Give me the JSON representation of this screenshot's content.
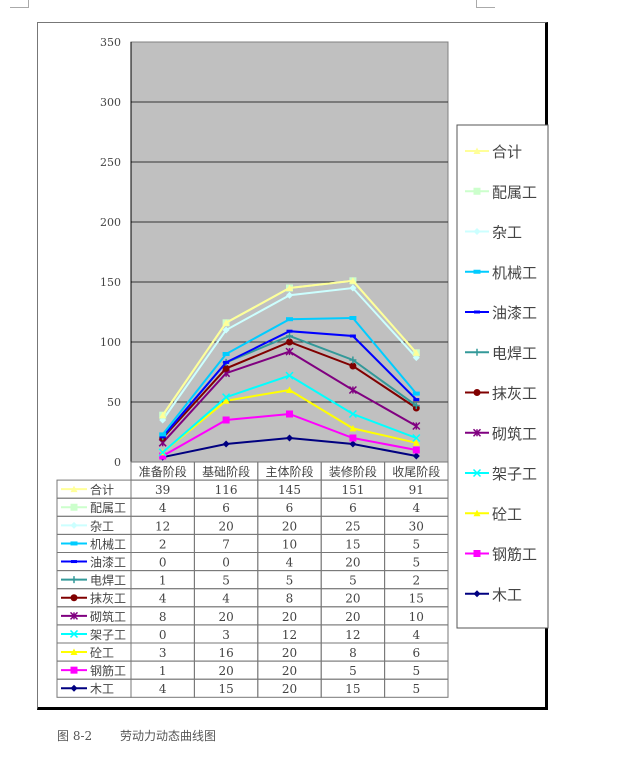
{
  "caption": {
    "figure_no": "图 8-2",
    "title": "劳动力动态曲线图"
  },
  "chart_data": {
    "type": "line",
    "stacked": true,
    "title": "劳动力动态曲线图",
    "xlabel": "",
    "ylabel": "",
    "ylim": [
      0,
      350
    ],
    "yticks": [
      0,
      50,
      100,
      150,
      200,
      250,
      300,
      350
    ],
    "grid": true,
    "legend_position": "right",
    "categories": [
      "准备阶段",
      "基础阶段",
      "主体阶段",
      "装修阶段",
      "收尾阶段"
    ],
    "series": [
      {
        "name": "合计",
        "color": "#FFFF99",
        "marker": "triangle",
        "values": [
          39,
          116,
          145,
          151,
          91
        ]
      },
      {
        "name": "配属工",
        "color": "#CCFFCC",
        "marker": "square",
        "values": [
          4,
          6,
          6,
          6,
          4
        ]
      },
      {
        "name": "杂工",
        "color": "#CCFFFF",
        "marker": "diamond",
        "values": [
          12,
          20,
          20,
          25,
          30
        ]
      },
      {
        "name": "机械工",
        "color": "#00CCFF",
        "marker": "rect",
        "values": [
          2,
          7,
          10,
          15,
          5
        ]
      },
      {
        "name": "油漆工",
        "color": "#0000FF",
        "marker": "dash",
        "values": [
          0,
          0,
          4,
          20,
          5
        ]
      },
      {
        "name": "电焊工",
        "color": "#339999",
        "marker": "plus",
        "values": [
          1,
          5,
          5,
          5,
          2
        ]
      },
      {
        "name": "抹灰工",
        "color": "#800000",
        "marker": "circle",
        "values": [
          4,
          4,
          8,
          20,
          15
        ]
      },
      {
        "name": "砌筑工",
        "color": "#800080",
        "marker": "star",
        "values": [
          8,
          20,
          20,
          20,
          10
        ]
      },
      {
        "name": "架子工",
        "color": "#00FFFF",
        "marker": "x",
        "values": [
          0,
          3,
          12,
          12,
          4
        ]
      },
      {
        "name": "砼工",
        "color": "#FFFF00",
        "marker": "triangle",
        "values": [
          3,
          16,
          20,
          8,
          6
        ]
      },
      {
        "name": "钢筋工",
        "color": "#FF00FF",
        "marker": "square",
        "values": [
          1,
          20,
          20,
          5,
          5
        ]
      },
      {
        "name": "木工",
        "color": "#000080",
        "marker": "diamond",
        "values": [
          4,
          15,
          20,
          15,
          5
        ]
      }
    ]
  },
  "colors": {
    "plot_bg": "#C0C0C0",
    "grid": "#333333",
    "frame": "#777777"
  }
}
